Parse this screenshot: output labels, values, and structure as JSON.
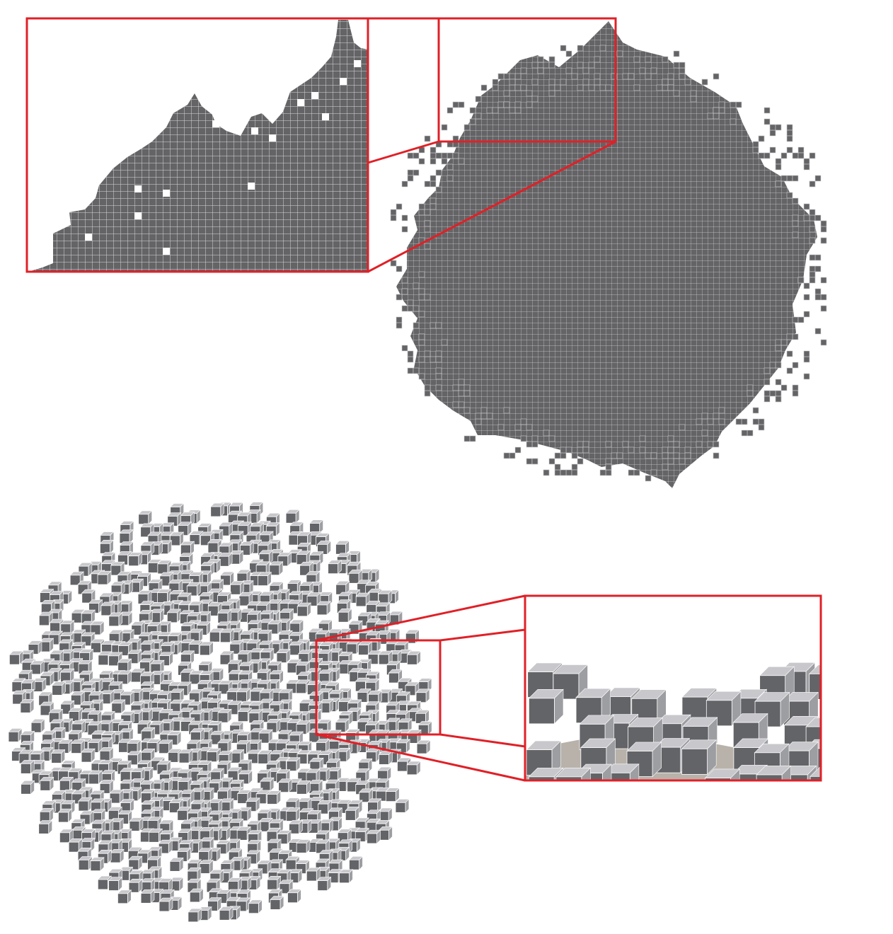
{
  "figure": {
    "panels": [
      {
        "id": "top-2d-cluster",
        "kind": "2d-voxel-projection",
        "zoom_inset": "top-left"
      },
      {
        "id": "bottom-3d-cluster",
        "kind": "3d-voxel-render",
        "zoom_inset": "right"
      }
    ],
    "colors": {
      "voxel_fill": "#646466",
      "voxel_grid": "#cfcfd2",
      "cube_top": "#c8c8cc",
      "cube_side": "#9d9ea2",
      "cube_front": "#636467",
      "floor_tile": "#b8b2aa",
      "highlight": "#e02027",
      "background": "#ffffff"
    },
    "icons": {
      "zoom_frames": "red-rectangle",
      "connectors": "red-lines"
    }
  }
}
